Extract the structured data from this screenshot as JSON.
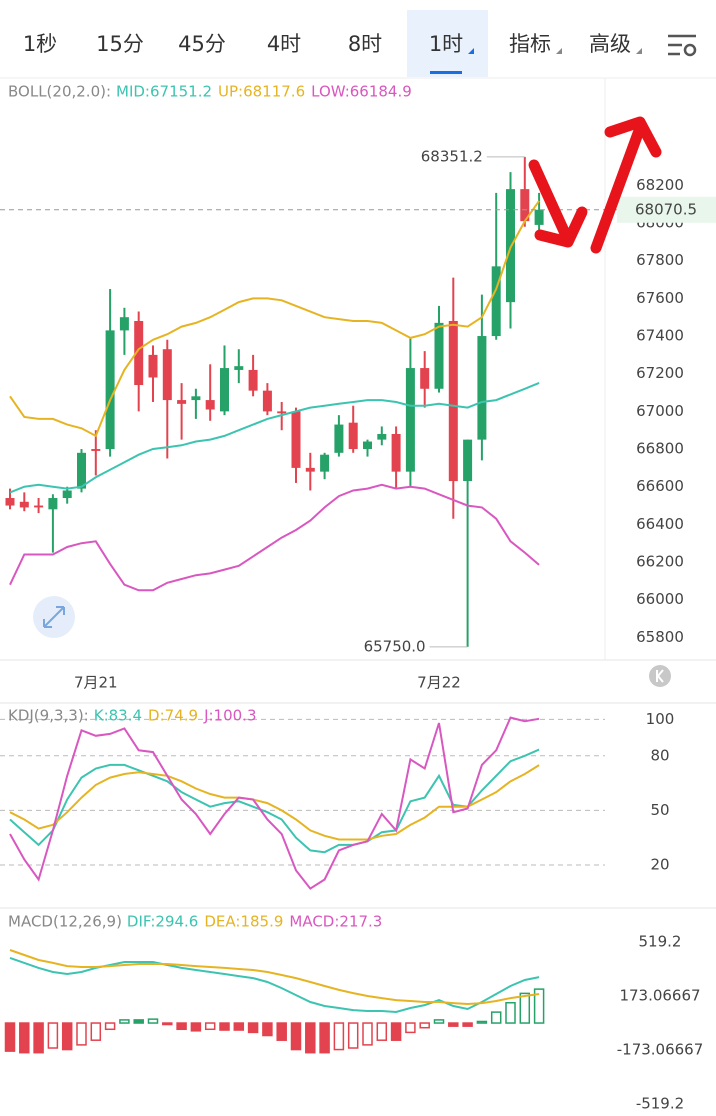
{
  "tabs": [
    "1秒",
    "15分",
    "45分",
    "4时",
    "8时",
    "1时",
    "指标",
    "高级"
  ],
  "active_tab": 5,
  "chart_data": [
    {
      "type": "candlestick",
      "indicator": "BOLL(20,2.0):",
      "categories": [
        null,
        null,
        null,
        null,
        null,
        null,
        "7月21",
        null,
        null,
        null,
        null,
        null,
        null,
        null,
        null,
        null,
        null,
        null,
        null,
        null,
        null,
        null,
        null,
        null,
        null,
        null,
        null,
        null,
        null,
        null,
        "7月22",
        null,
        null,
        null,
        null,
        null,
        null,
        null
      ],
      "open": [
        66540,
        66520,
        66500,
        66480,
        66540,
        66590,
        66800,
        66800,
        67430,
        67480,
        67300,
        67330,
        67060,
        67060,
        67060,
        67000,
        67220,
        67220,
        67110,
        67000,
        67000,
        66700,
        66680,
        66780,
        66940,
        66800,
        66850,
        66880,
        66680,
        67230,
        67120,
        67480,
        66630,
        66850,
        67400,
        67580,
        68180,
        67990
      ],
      "high": [
        66590,
        66570,
        66540,
        66560,
        66600,
        66800,
        66900,
        67650,
        67550,
        67530,
        67350,
        67380,
        67150,
        67120,
        67250,
        67350,
        67330,
        67300,
        67150,
        67050,
        67020,
        66780,
        66780,
        66980,
        67030,
        66850,
        66920,
        66920,
        67390,
        67320,
        67560,
        67710,
        66850,
        67620,
        68160,
        68270,
        68351.2,
        68160
      ],
      "low": [
        66480,
        66470,
        66460,
        66250,
        66510,
        66570,
        66660,
        66760,
        67300,
        67000,
        67050,
        66750,
        66850,
        66960,
        66950,
        66980,
        67150,
        67080,
        66980,
        66900,
        66620,
        66580,
        66640,
        66760,
        66780,
        66760,
        66820,
        66590,
        66600,
        67020,
        67100,
        66430,
        65750,
        66740,
        67380,
        67440,
        67980,
        67950
      ],
      "close": [
        66500,
        66490,
        66490,
        66540,
        66580,
        66780,
        66790,
        67430,
        67500,
        67140,
        67180,
        67060,
        67040,
        67080,
        67010,
        67230,
        67240,
        67110,
        67000,
        66990,
        66700,
        66680,
        66770,
        66930,
        66800,
        66840,
        66880,
        66680,
        67230,
        67120,
        67470,
        66630,
        66850,
        67400,
        67770,
        68180,
        68010,
        68070.5
      ],
      "up_color": "#26a269",
      "down_color": "#e2434f",
      "series": [
        {
          "name": "MID:67151.2",
          "color": "#3cc4b0",
          "values": [
            66570,
            66600,
            66610,
            66600,
            66590,
            66600,
            66650,
            66690,
            66730,
            66770,
            66800,
            66810,
            66820,
            66840,
            66850,
            66870,
            66900,
            66930,
            66960,
            66980,
            67000,
            67020,
            67030,
            67040,
            67050,
            67060,
            67060,
            67050,
            67030,
            67030,
            67040,
            67030,
            67020,
            67050,
            67060,
            67090,
            67120,
            67151.2
          ]
        },
        {
          "name": "UP:68117.6",
          "color": "#e6b422",
          "values": [
            67080,
            66970,
            66960,
            66960,
            66930,
            66910,
            66870,
            67060,
            67220,
            67330,
            67380,
            67410,
            67450,
            67470,
            67500,
            67540,
            67580,
            67600,
            67600,
            67590,
            67560,
            67530,
            67500,
            67490,
            67480,
            67480,
            67470,
            67430,
            67390,
            67410,
            67450,
            67460,
            67450,
            67500,
            67650,
            67870,
            68010,
            68117.6
          ]
        },
        {
          "name": "LOW:66184.9",
          "color": "#d957c0",
          "values": [
            66080,
            66240,
            66240,
            66240,
            66280,
            66300,
            66310,
            66190,
            66080,
            66050,
            66050,
            66090,
            66110,
            66130,
            66140,
            66160,
            66180,
            66230,
            66280,
            66330,
            66370,
            66420,
            66490,
            66550,
            66580,
            66590,
            66610,
            66590,
            66600,
            66590,
            66560,
            66530,
            66500,
            66490,
            66430,
            66310,
            66250,
            66184.9
          ]
        }
      ],
      "ylim": [
        65680,
        68770
      ],
      "yticks": [
        68200,
        68000,
        67800,
        67600,
        67400,
        67200,
        67000,
        66800,
        66600,
        66400,
        66200,
        66000,
        65800
      ],
      "last_price": 68070.5,
      "annotations": [
        68351.2,
        {
          "value": 65750,
          "label": "65750.0"
        }
      ]
    },
    {
      "type": "line",
      "indicator": "KDJ(9,3,3):",
      "series": [
        {
          "name": "K:83.4",
          "color": "#3cc4b0",
          "values": [
            45,
            38,
            31,
            39,
            56,
            68,
            73,
            75,
            75,
            72,
            69,
            66,
            60,
            56,
            52,
            54,
            55,
            52,
            49,
            45,
            35,
            28,
            27,
            31,
            31,
            33,
            38,
            39,
            55,
            57,
            69,
            53,
            52,
            61,
            69,
            77,
            80,
            83.4
          ]
        },
        {
          "name": "D:74.9",
          "color": "#e6b422",
          "values": [
            49,
            45,
            40,
            42,
            49,
            57,
            64,
            68,
            70,
            71,
            70,
            69,
            66,
            62,
            59,
            57,
            57,
            56,
            54,
            50,
            45,
            39,
            36,
            34,
            34,
            34,
            36,
            37,
            42,
            46,
            52,
            52,
            52,
            56,
            60,
            66,
            70,
            74.9
          ]
        },
        {
          "name": "J:100.3",
          "color": "#d957c0",
          "values": [
            37,
            23,
            12,
            39,
            69,
            94,
            91,
            92,
            95,
            83,
            82,
            69,
            56,
            48,
            37,
            48,
            57,
            56,
            45,
            37,
            17,
            7,
            12,
            28,
            31,
            33,
            48,
            39,
            78,
            73,
            98,
            49,
            51,
            75,
            83,
            101,
            99,
            100.3
          ]
        }
      ],
      "ylim": [
        -2,
        109
      ],
      "yticks": [
        100,
        80,
        50,
        20
      ],
      "grid": true
    },
    {
      "type": "macd",
      "indicator": "MACD(12,26,9)",
      "series": [
        {
          "name": "DIF:294.6",
          "color": "#3cc4b0",
          "values": [
            417,
            385,
            353,
            327,
            314,
            327,
            353,
            372,
            391,
            391,
            391,
            372,
            353,
            340,
            327,
            314,
            301,
            288,
            263,
            224,
            179,
            135,
            109,
            96,
            83,
            77,
            77,
            71,
            96,
            115,
            147,
            109,
            90,
            135,
            186,
            237,
            276,
            294.6
          ]
        },
        {
          "name": "DEA:185.9",
          "color": "#e6b422",
          "values": [
            468,
            436,
            404,
            385,
            365,
            359,
            359,
            365,
            372,
            378,
            378,
            378,
            372,
            365,
            359,
            353,
            346,
            340,
            327,
            308,
            288,
            263,
            237,
            212,
            192,
            173,
            160,
            147,
            141,
            135,
            135,
            128,
            122,
            128,
            141,
            160,
            173,
            185.9
          ]
        },
        {
          "name": "MACD:217.3",
          "color": "#d957c0",
          "bar": true,
          "values": [
            -180,
            -190,
            -190,
            -160,
            -170,
            -140,
            -110,
            -40,
            20,
            20,
            25,
            -5,
            -40,
            -50,
            -40,
            -45,
            -45,
            -60,
            -80,
            -110,
            -170,
            -190,
            -190,
            -170,
            -160,
            -140,
            -110,
            -110,
            -60,
            -30,
            20,
            -20,
            -20,
            10,
            70,
            130,
            190,
            217.3
          ]
        }
      ],
      "ylim": [
        -570,
        737
      ],
      "yticks": [
        519.2,
        173.06667,
        -173.06667,
        -519.2
      ]
    }
  ]
}
